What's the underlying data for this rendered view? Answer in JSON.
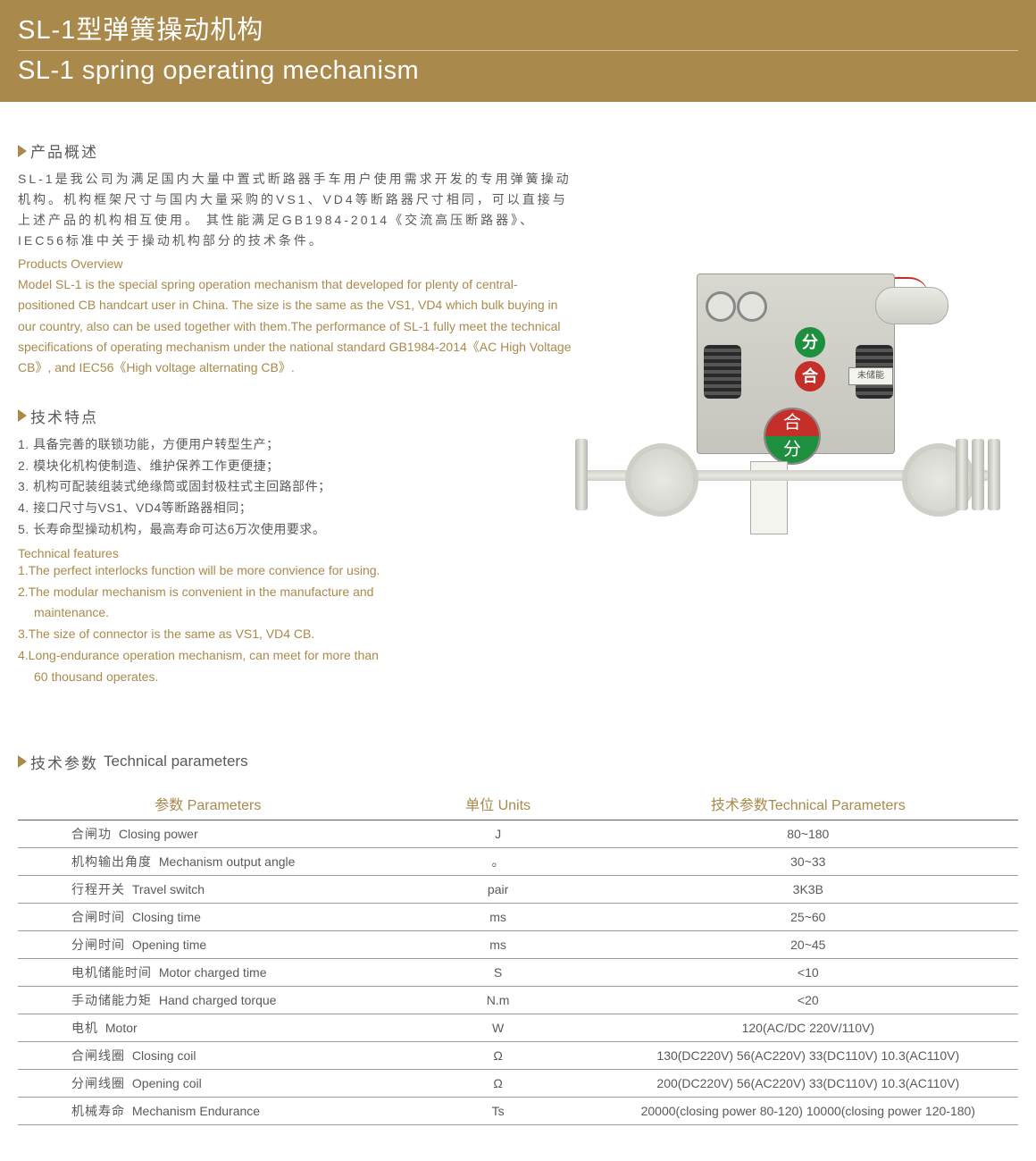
{
  "header": {
    "title_cn": "SL-1型弹簧操动机构",
    "title_en": "SL-1 spring operating mechanism"
  },
  "overview": {
    "heading_cn": "产品概述",
    "body_cn": "SL-1是我公司为满足国内大量中置式断路器手车用户使用需求开发的专用弹簧操动机构。机构框架尺寸与国内大量采购的VS1、VD4等断路器尺寸相同，可以直接与上述产品的机构相互使用。 其性能满足GB1984-2014《交流高压断路器》、IEC56标准中关于操动机构部分的技术条件。",
    "heading_en": "Products Overview",
    "body_en": "Model SL-1 is the special spring operation mechanism that developed for plenty of central-positioned CB handcart user in China. The size is the same as the VS1, VD4 which bulk buying in our country, also can be used together with them.The performance of SL-1 fully meet the technical specifications of operating mechanism under the national standard GB1984-2014《AC High Voltage CB》, and IEC56《High voltage alternating CB》."
  },
  "features": {
    "heading_cn": "技术特点",
    "items_cn": [
      "1. 具备完善的联锁功能，方便用户转型生产；",
      "2. 模块化机构使制造、维护保养工作更便捷；",
      "3. 机构可配装组装式绝缘筒或固封极柱式主回路部件；",
      "4. 接口尺寸与VS1、VD4等断路器相同；",
      "5. 长寿命型操动机构，最高寿命可达6万次使用要求。"
    ],
    "heading_en": "Technical features",
    "items_en": [
      "1.The perfect interlocks function will be more convience for using.",
      "2.The modular mechanism is convenient  in the manufacture and",
      "maintenance.",
      "3.The size of connector is the same as VS1, VD4 CB.",
      "4.Long-endurance operation mechanism, can meet for more than",
      "60 thousand operates."
    ],
    "indent_lines": [
      2,
      5
    ]
  },
  "illustration": {
    "badge_open": "分",
    "badge_close": "合",
    "big_close": "合",
    "big_open": "分",
    "label_uncharged": "未储能"
  },
  "params": {
    "heading_cn": "技术参数",
    "heading_en": "Technical parameters",
    "columns": [
      "参数 Parameters",
      "单位 Units",
      "技术参数Technical Parameters"
    ],
    "col_widths": [
      "38%",
      "20%",
      "42%"
    ],
    "rows": [
      {
        "cn": "合闸功",
        "en": "Closing power",
        "unit": "J",
        "val": "80~180"
      },
      {
        "cn": "机构输出角度",
        "en": "Mechanism output angle",
        "unit": "。",
        "val": "30~33"
      },
      {
        "cn": "行程开关",
        "en": "Travel switch",
        "unit": "pair",
        "val": "3K3B"
      },
      {
        "cn": "合闸时间",
        "en": "Closing time",
        "unit": "ms",
        "val": "25~60"
      },
      {
        "cn": "分闸时间",
        "en": "Opening time",
        "unit": "ms",
        "val": "20~45"
      },
      {
        "cn": "电机储能时间",
        "en": "Motor charged time",
        "unit": "S",
        "val": "<10"
      },
      {
        "cn": "手动储能力矩",
        "en": "Hand charged torque",
        "unit": "N.m",
        "val": "<20"
      },
      {
        "cn": "电机",
        "en": "Motor",
        "unit": "W",
        "val": "120(AC/DC 220V/110V)"
      },
      {
        "cn": "合闸线圈",
        "en": "Closing coil",
        "unit": "Ω",
        "val": "130(DC220V) 56(AC220V) 33(DC110V) 10.3(AC110V)"
      },
      {
        "cn": "分闸线圈",
        "en": "Opening coil",
        "unit": "Ω",
        "val": "200(DC220V) 56(AC220V) 33(DC110V) 10.3(AC110V)"
      },
      {
        "cn": "机械寿命",
        "en": "Mechanism Endurance",
        "unit": "Ts",
        "val": "20000(closing power 80-120) 10000(closing power 120-180)"
      }
    ]
  },
  "colors": {
    "accent": "#a98a4c",
    "text": "#5a5a5a",
    "green": "#1e8f3e",
    "red": "#c52f2a"
  }
}
